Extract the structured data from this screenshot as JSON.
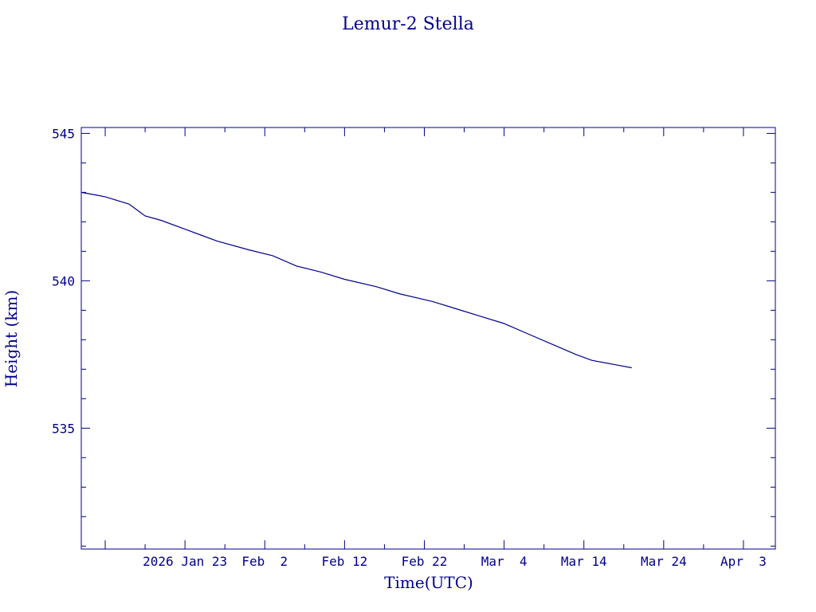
{
  "chart_data": {
    "type": "line",
    "title": "Lemur-2 Stella",
    "xlabel": "Time(UTC)",
    "ylabel": "Height (km)",
    "color": "#00008b",
    "grid": false,
    "xlim": [
      "2026-01-10",
      "2026-04-07"
    ],
    "ylim": [
      530.9,
      545.2
    ],
    "x_ticks": [
      {
        "date": "2026-01-23",
        "label": "2026 Jan 23"
      },
      {
        "date": "2026-02-02",
        "label": "Feb  2"
      },
      {
        "date": "2026-02-12",
        "label": "Feb 12"
      },
      {
        "date": "2026-02-22",
        "label": "Feb 22"
      },
      {
        "date": "2026-03-04",
        "label": "Mar  4"
      },
      {
        "date": "2026-03-14",
        "label": "Mar 14"
      },
      {
        "date": "2026-03-24",
        "label": "Mar 24"
      },
      {
        "date": "2026-04-03",
        "label": "Apr  3"
      }
    ],
    "y_ticks": [
      535,
      540,
      545
    ],
    "series": [
      {
        "x": [
          "2026-01-10",
          "2026-01-13",
          "2026-01-16",
          "2026-01-17",
          "2026-01-18",
          "2026-01-20",
          "2026-01-23",
          "2026-01-27",
          "2026-01-31",
          "2026-02-03",
          "2026-02-06",
          "2026-02-09",
          "2026-02-12",
          "2026-02-16",
          "2026-02-19",
          "2026-02-23",
          "2026-02-26",
          "2026-03-01",
          "2026-03-04",
          "2026-03-07",
          "2026-03-10",
          "2026-03-13",
          "2026-03-15",
          "2026-03-18",
          "2026-03-20"
        ],
        "y": [
          543.0,
          542.85,
          542.6,
          542.4,
          542.2,
          542.05,
          541.75,
          541.35,
          541.05,
          540.85,
          540.5,
          540.3,
          540.05,
          539.8,
          539.55,
          539.3,
          539.05,
          538.8,
          538.55,
          538.2,
          537.85,
          537.5,
          537.3,
          537.15,
          537.05
        ]
      }
    ]
  }
}
